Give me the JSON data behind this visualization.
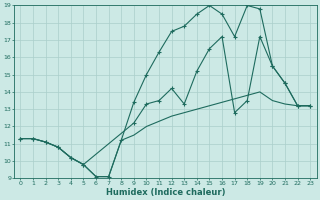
{
  "xlabel": "Humidex (Indice chaleur)",
  "xlim": [
    -0.5,
    23.5
  ],
  "ylim": [
    9,
    19
  ],
  "xticks": [
    0,
    1,
    2,
    3,
    4,
    5,
    6,
    7,
    8,
    9,
    10,
    11,
    12,
    13,
    14,
    15,
    16,
    17,
    18,
    19,
    20,
    21,
    22,
    23
  ],
  "yticks": [
    9,
    10,
    11,
    12,
    13,
    14,
    15,
    16,
    17,
    18,
    19
  ],
  "bg_color": "#cce9e5",
  "grid_color": "#aacfcb",
  "line_color": "#1e6b5e",
  "line1_x": [
    0,
    1,
    2,
    3,
    4,
    5,
    6,
    7,
    8,
    9,
    10,
    11,
    12,
    13,
    14,
    15,
    16,
    17,
    18,
    19,
    20,
    21,
    22,
    23
  ],
  "line1_y": [
    11.3,
    11.3,
    11.1,
    10.8,
    10.2,
    9.8,
    9.1,
    9.1,
    11.2,
    13.4,
    15.0,
    16.3,
    17.5,
    17.8,
    18.5,
    19.0,
    18.5,
    17.2,
    19.0,
    18.8,
    15.5,
    14.5,
    13.2,
    13.2
  ],
  "line2_x": [
    0,
    1,
    2,
    3,
    4,
    5,
    9,
    10,
    11,
    12,
    13,
    14,
    15,
    16,
    17,
    18,
    19,
    20,
    21,
    22,
    23
  ],
  "line2_y": [
    11.3,
    11.3,
    11.1,
    10.8,
    10.2,
    9.8,
    12.2,
    13.3,
    13.5,
    14.2,
    13.3,
    15.2,
    16.5,
    17.2,
    12.8,
    13.5,
    17.2,
    15.5,
    14.5,
    13.2,
    13.2
  ],
  "line3_x": [
    0,
    1,
    2,
    3,
    4,
    5,
    6,
    7,
    8,
    9,
    10,
    11,
    12,
    13,
    14,
    15,
    16,
    17,
    18,
    19,
    20,
    21,
    22,
    23
  ],
  "line3_y": [
    11.3,
    11.3,
    11.1,
    10.8,
    10.2,
    9.8,
    9.1,
    9.1,
    11.2,
    11.5,
    12.0,
    12.3,
    12.6,
    12.8,
    13.0,
    13.2,
    13.4,
    13.6,
    13.8,
    14.0,
    13.5,
    13.3,
    13.2,
    13.2
  ]
}
